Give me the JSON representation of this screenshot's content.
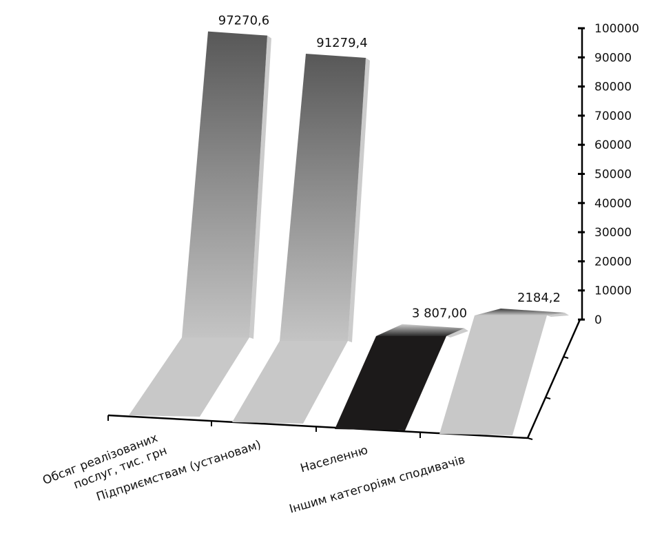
{
  "chart_data": {
    "type": "bar",
    "title": "",
    "xlabel": "",
    "ylabel": "",
    "ylim": [
      0,
      100000
    ],
    "yticks": [
      0,
      10000,
      20000,
      30000,
      40000,
      50000,
      60000,
      70000,
      80000,
      90000,
      100000
    ],
    "grid": false,
    "legend": "none",
    "categories": [
      "Обсяг реалізованих послуг, тис. грн",
      "Підприємствам (установам)",
      "Населенню",
      "Іншим категоріям сподивачів"
    ],
    "category_label_lines": [
      [
        "Обсяг реалізованих",
        "послуг, тис. грн"
      ],
      [
        "Підприємствам (установам)"
      ],
      [
        "Населенню"
      ],
      [
        "Іншим категоріям сподивачів"
      ]
    ],
    "values": [
      97270.6,
      91279.4,
      3807.0,
      2184.2
    ],
    "data_labels": [
      "97270,6",
      "91279,4",
      "3 807,00",
      "2184,2"
    ],
    "colors": {
      "bar_top": "#585858",
      "bar_mid": "#bdbdbd",
      "floor": "#c8c8c8",
      "highlight": "#1c1a1a",
      "axis": "#000000"
    }
  }
}
